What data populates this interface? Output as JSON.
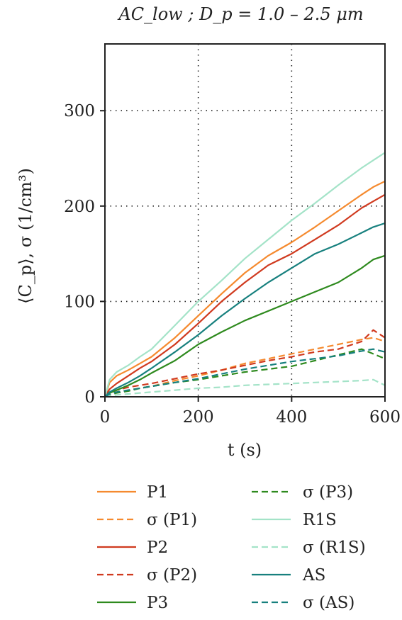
{
  "chart_data": {
    "type": "line",
    "title": "AC_low ; D_p = 1.0 – 2.5 μm",
    "xlabel": "t (s)",
    "ylabel": "⟨C_p⟩, σ (1/cm³)",
    "xlim": [
      0,
      600
    ],
    "ylim": [
      0,
      370
    ],
    "xticks": [
      0,
      200,
      400,
      600
    ],
    "yticks": [
      0,
      100,
      200,
      300
    ],
    "grid": true,
    "legend_position": "below",
    "x": [
      0,
      10,
      25,
      50,
      75,
      100,
      150,
      200,
      250,
      300,
      350,
      400,
      450,
      500,
      550,
      575,
      600
    ],
    "series": [
      {
        "name": "P1",
        "style": "solid",
        "color": "#f58a2f",
        "values": [
          0,
          15,
          22,
          28,
          35,
          42,
          62,
          85,
          108,
          130,
          148,
          162,
          178,
          195,
          212,
          220,
          226
        ]
      },
      {
        "name": "σ (P1)",
        "style": "dashed",
        "color": "#f58a2f",
        "values": [
          0,
          3,
          5,
          7,
          9,
          11,
          17,
          22,
          28,
          35,
          40,
          45,
          50,
          55,
          60,
          62,
          58
        ]
      },
      {
        "name": "P2",
        "style": "solid",
        "color": "#d03a1f",
        "values": [
          0,
          8,
          14,
          22,
          30,
          37,
          55,
          77,
          100,
          120,
          138,
          150,
          165,
          180,
          198,
          205,
          212
        ]
      },
      {
        "name": "σ (P2)",
        "style": "dashed",
        "color": "#d03a1f",
        "values": [
          0,
          4,
          7,
          10,
          12,
          14,
          19,
          24,
          28,
          33,
          38,
          42,
          47,
          50,
          58,
          70,
          62
        ]
      },
      {
        "name": "P3",
        "style": "solid",
        "color": "#2e8a1e",
        "values": [
          0,
          4,
          7,
          12,
          18,
          25,
          38,
          55,
          68,
          80,
          90,
          100,
          110,
          120,
          135,
          144,
          148
        ]
      },
      {
        "name": "σ (P3)",
        "style": "dashed",
        "color": "#2e8a1e",
        "values": [
          0,
          2,
          4,
          6,
          9,
          11,
          15,
          18,
          22,
          26,
          29,
          32,
          38,
          44,
          50,
          45,
          40
        ]
      },
      {
        "name": "R1S",
        "style": "solid",
        "color": "#a4e3c8",
        "values": [
          0,
          18,
          26,
          33,
          42,
          50,
          75,
          100,
          122,
          145,
          165,
          185,
          203,
          222,
          240,
          248,
          256
        ]
      },
      {
        "name": "σ (R1S)",
        "style": "dashed",
        "color": "#a4e3c8",
        "values": [
          0,
          1,
          2,
          3,
          4,
          5,
          7,
          9,
          10,
          12,
          13,
          14,
          15,
          16,
          17,
          18,
          12
        ]
      },
      {
        "name": "AS",
        "style": "solid",
        "color": "#17807e",
        "values": [
          0,
          5,
          9,
          15,
          22,
          30,
          47,
          65,
          85,
          103,
          120,
          135,
          150,
          160,
          172,
          178,
          182
        ]
      },
      {
        "name": "σ (AS)",
        "style": "dashed",
        "color": "#17807e",
        "values": [
          0,
          3,
          5,
          7,
          9,
          11,
          15,
          19,
          24,
          29,
          33,
          37,
          40,
          43,
          48,
          50,
          47
        ]
      }
    ]
  }
}
